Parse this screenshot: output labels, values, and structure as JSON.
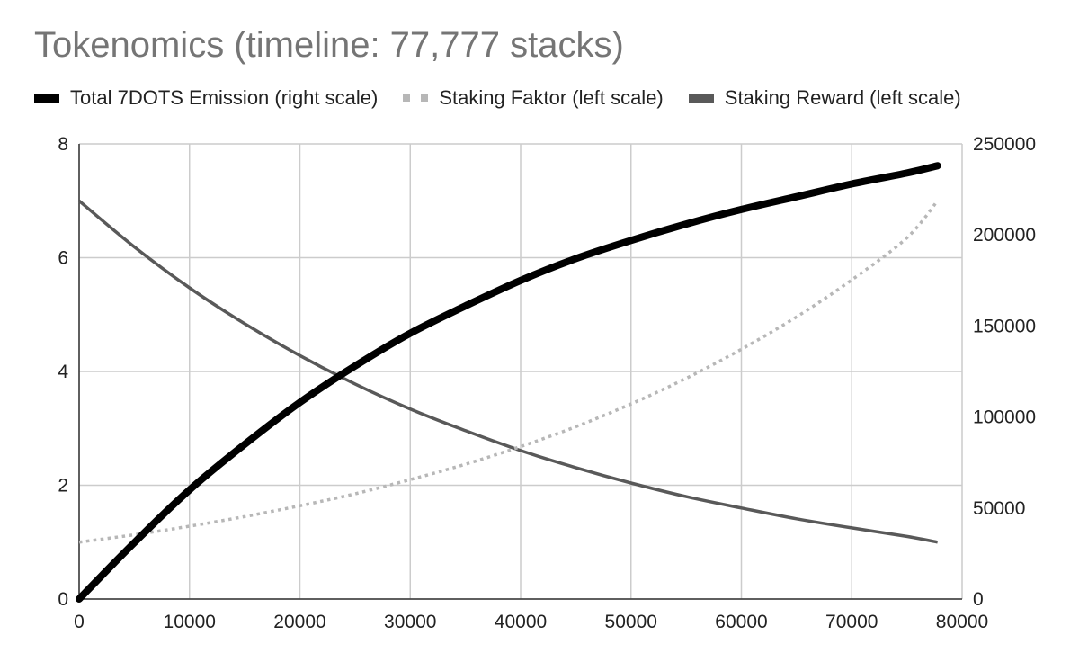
{
  "chart_data": {
    "type": "line",
    "title": "Tokenomics (timeline: 77,777 stacks)",
    "legend_position": "top",
    "grid": true,
    "xlim": [
      0,
      80000
    ],
    "xticks": [
      0,
      10000,
      20000,
      30000,
      40000,
      50000,
      60000,
      70000,
      80000
    ],
    "ylim_left": [
      0,
      8
    ],
    "yticks_left": [
      0,
      2,
      4,
      6,
      8
    ],
    "ylim_right": [
      0,
      250000
    ],
    "yticks_right": [
      0,
      50000,
      100000,
      150000,
      200000,
      250000
    ],
    "x": [
      0,
      5000,
      10000,
      15000,
      20000,
      25000,
      30000,
      35000,
      40000,
      45000,
      50000,
      55000,
      60000,
      65000,
      70000,
      75000,
      77777
    ],
    "series": [
      {
        "name": "Total 7DOTS Emission (right scale)",
        "axis": "right",
        "style": "solid-thick",
        "color": "#000000",
        "values": [
          0,
          31000,
          60000,
          85000,
          108000,
          128000,
          146000,
          161000,
          175000,
          187000,
          197000,
          206000,
          214000,
          221000,
          228000,
          234000,
          238000
        ]
      },
      {
        "name": "Staking Faktor (left scale)",
        "axis": "left",
        "style": "dotted",
        "color": "#b7b7b7",
        "values": [
          1.0,
          1.13,
          1.28,
          1.45,
          1.64,
          1.85,
          2.1,
          2.37,
          2.68,
          3.03,
          3.43,
          3.88,
          4.39,
          4.96,
          5.61,
          6.35,
          7.0
        ]
      },
      {
        "name": "Staking Reward (left scale)",
        "axis": "left",
        "style": "solid",
        "color": "#595959",
        "values": [
          7.0,
          6.19,
          5.47,
          4.84,
          4.28,
          3.78,
          3.34,
          2.96,
          2.61,
          2.31,
          2.04,
          1.8,
          1.6,
          1.41,
          1.25,
          1.1,
          1.0
        ]
      }
    ]
  }
}
